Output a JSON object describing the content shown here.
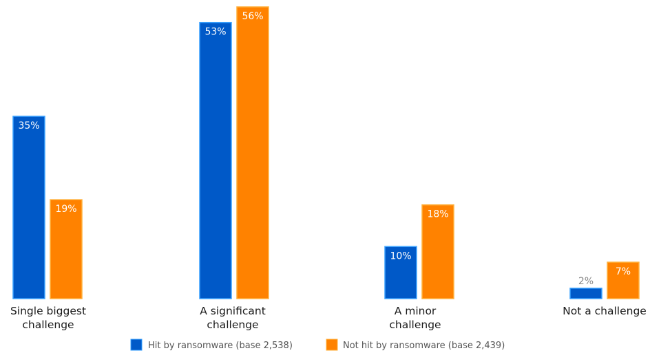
{
  "chart_data": {
    "type": "bar",
    "categories": [
      [
        "Single biggest",
        "challenge"
      ],
      [
        "A significant",
        "challenge"
      ],
      [
        "A minor",
        "challenge"
      ],
      [
        "Not a challenge"
      ]
    ],
    "series": [
      {
        "name": "Hit by ransomware (base 2,538)",
        "color": "#0059c8",
        "edge": "#3aa2ff",
        "values": [
          35,
          53,
          10,
          2
        ],
        "labels": [
          "35%",
          "53%",
          "10%",
          "2%"
        ]
      },
      {
        "name": "Not hit by ransomware (base 2,439)",
        "color": "#ff8200",
        "edge": "#ffb13d",
        "values": [
          19,
          56,
          18,
          7
        ],
        "labels": [
          "19%",
          "56%",
          "18%",
          "7%"
        ]
      }
    ],
    "ylim": [
      0,
      56
    ],
    "grid": false,
    "legend": "bottom",
    "title": "",
    "xlabel": "",
    "ylabel": ""
  }
}
